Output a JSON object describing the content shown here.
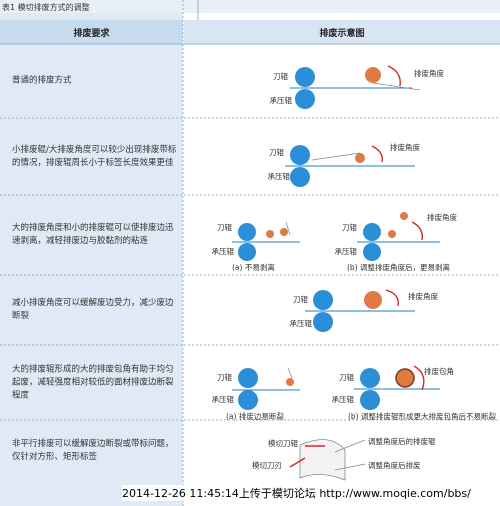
{
  "title": "表1 模切排废方式的调整",
  "table": {
    "header": [
      "排废要求",
      "排废示意图"
    ],
    "rows": [
      {
        "requirement": "普通的排废方式",
        "labels": [
          "刀辊",
          "承压辊",
          "排废角度"
        ]
      },
      {
        "requirement": "小排废辊/大排废角度可以较少出现排废带标的情况，排废辊周长小于标签长度效果更佳",
        "labels": [
          "刀辊",
          "承压辊",
          "排废角度"
        ]
      },
      {
        "requirement": "大的排废角度和小的排废辊可以使排废边迅速剥离，减轻排废边与胶黏剂的粘连",
        "labels": [
          "刀辊",
          "承压辊",
          "(a) 不易剥离",
          "刀辊",
          "承压辊",
          "排废角度",
          "(b) 调整排废角度后，更易剥离"
        ]
      },
      {
        "requirement": "减小排废角度可以缓解废边受力，减少废边断裂",
        "labels": [
          "刀辊",
          "承压辊",
          "排废角度"
        ]
      },
      {
        "requirement": "大的排废辊形成的大的排废包角有助于均匀起废，减轻强度相对较低的面材排废边断裂程度",
        "labels": [
          "刀辊",
          "承压辊",
          "(a) 排废边易断裂",
          "刀辊",
          "承压辊",
          "排废包角",
          "(b) 调整排废辊形成更大排废包角后不易断裂"
        ]
      },
      {
        "requirement": "非平行排废可以缓解废边断裂或带标问题，仅针对方形、矩形标签",
        "labels": [
          "模切刀辊",
          "模切刀刃",
          "调整角度后的排废辊",
          "调整角度后排废"
        ]
      }
    ]
  },
  "watermark": "2014-12-26 11:45:14上传于模切论坛 http://www.moqie.com/bbs/"
}
